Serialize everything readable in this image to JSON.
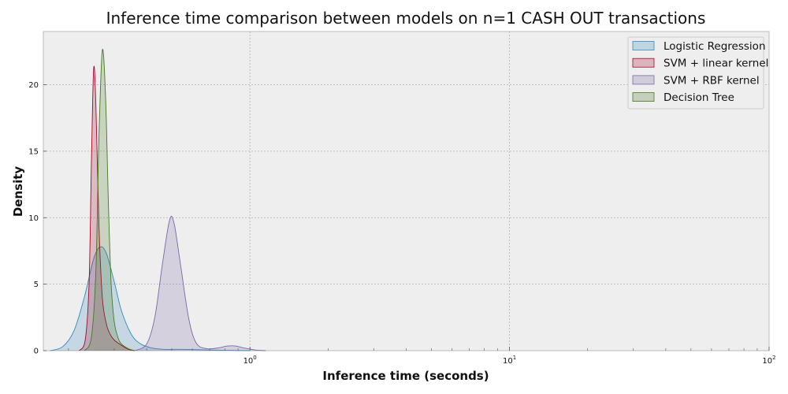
{
  "chart_data": {
    "type": "area",
    "title": "Inference time comparison between models on n=1 CASH OUT transactions",
    "xlabel": "Inference time (seconds)",
    "ylabel": "Density",
    "x_scale": "log",
    "xlim": [
      0.16,
      100
    ],
    "ylim": [
      0,
      24
    ],
    "x_ticks": [
      {
        "value": 1,
        "base": "10",
        "exp": "0"
      },
      {
        "value": 10,
        "base": "10",
        "exp": "1"
      },
      {
        "value": 100,
        "base": "10",
        "exp": "2"
      }
    ],
    "y_ticks": [
      0,
      5,
      10,
      15,
      20
    ],
    "grid": true,
    "legend_position": "top-right",
    "series": [
      {
        "name": "Logistic Regression",
        "color": "#348ABD",
        "x": [
          0.17,
          0.19,
          0.21,
          0.23,
          0.25,
          0.265,
          0.28,
          0.3,
          0.32,
          0.35,
          0.38,
          0.42,
          0.47,
          0.55,
          0.7,
          1.0
        ],
        "y": [
          0,
          0.3,
          1.5,
          4.0,
          6.9,
          7.8,
          7.3,
          5.2,
          3.0,
          1.2,
          0.5,
          0.2,
          0.1,
          0.1,
          0.05,
          0
        ]
      },
      {
        "name": "SVM + linear kernel",
        "color": "#A60628",
        "x": [
          0.22,
          0.232,
          0.24,
          0.245,
          0.25,
          0.255,
          0.262,
          0.27,
          0.28,
          0.29,
          0.3,
          0.32,
          0.34,
          0.36
        ],
        "y": [
          0,
          0.8,
          5.0,
          14.0,
          21.2,
          18.5,
          9.5,
          4.0,
          2.0,
          1.2,
          0.8,
          0.4,
          0.1,
          0
        ]
      },
      {
        "name": "SVM + RBF kernel",
        "color": "#7A68A6",
        "x": [
          0.36,
          0.4,
          0.43,
          0.46,
          0.49,
          0.51,
          0.54,
          0.58,
          0.62,
          0.68,
          0.75,
          0.82,
          0.88,
          0.95,
          1.05,
          1.15
        ],
        "y": [
          0,
          0.5,
          2.5,
          6.5,
          9.8,
          9.6,
          6.5,
          2.5,
          0.6,
          0.15,
          0.2,
          0.35,
          0.35,
          0.2,
          0.05,
          0
        ]
      },
      {
        "name": "Decision Tree",
        "color": "#467821",
        "x": [
          0.23,
          0.245,
          0.255,
          0.262,
          0.27,
          0.278,
          0.285,
          0.292,
          0.3,
          0.31,
          0.32,
          0.34,
          0.36
        ],
        "y": [
          0,
          1.0,
          6.0,
          16.0,
          22.6,
          19.0,
          11.0,
          5.0,
          2.2,
          1.0,
          0.5,
          0.15,
          0
        ]
      }
    ]
  }
}
